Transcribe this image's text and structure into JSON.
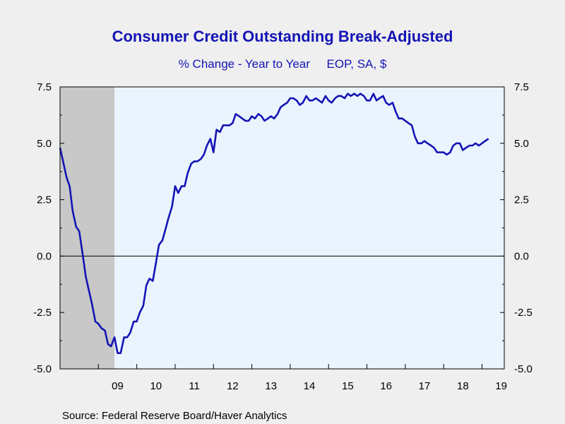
{
  "chart_data": {
    "type": "line",
    "title": "Consumer Credit Outstanding Break-Adjusted",
    "subtitle": "% Change - Year to Year     EOP, SA, $",
    "source": "Source:  Federal Reserve Board/Haver Analytics",
    "ylim": [
      -5.0,
      7.5
    ],
    "yticks": [
      "7.5",
      "5.0",
      "2.5",
      "0.0",
      "-2.5",
      "-5.0"
    ],
    "xlim": [
      2008.0,
      2019.58
    ],
    "xticks": [
      "09",
      "10",
      "11",
      "12",
      "13",
      "14",
      "15",
      "16",
      "17",
      "18",
      "19"
    ],
    "recession": [
      2008.0,
      2009.42
    ],
    "grid": false,
    "colors": {
      "series": "#1414b4",
      "plot_bg": "#eaf4ff",
      "recession": "#c8c8c8",
      "title": "#1414b4"
    },
    "series": [
      {
        "values": [
          [
            2008.0,
            4.8
          ],
          [
            2008.08,
            4.2
          ],
          [
            2008.17,
            3.5
          ],
          [
            2008.25,
            3.1
          ],
          [
            2008.33,
            2.0
          ],
          [
            2008.42,
            1.3
          ],
          [
            2008.5,
            1.1
          ],
          [
            2008.58,
            0.2
          ],
          [
            2008.67,
            -0.9
          ],
          [
            2008.75,
            -1.5
          ],
          [
            2008.83,
            -2.1
          ],
          [
            2008.92,
            -2.9
          ],
          [
            2009.0,
            -3.0
          ],
          [
            2009.08,
            -3.2
          ],
          [
            2009.17,
            -3.3
          ],
          [
            2009.25,
            -3.9
          ],
          [
            2009.33,
            -4.0
          ],
          [
            2009.42,
            -3.6
          ],
          [
            2009.5,
            -4.3
          ],
          [
            2009.58,
            -4.3
          ],
          [
            2009.67,
            -3.6
          ],
          [
            2009.75,
            -3.6
          ],
          [
            2009.83,
            -3.4
          ],
          [
            2009.92,
            -2.9
          ],
          [
            2010.0,
            -2.9
          ],
          [
            2010.08,
            -2.5
          ],
          [
            2010.17,
            -2.2
          ],
          [
            2010.25,
            -1.3
          ],
          [
            2010.33,
            -1.0
          ],
          [
            2010.42,
            -1.1
          ],
          [
            2010.5,
            -0.3
          ],
          [
            2010.58,
            0.5
          ],
          [
            2010.67,
            0.7
          ],
          [
            2010.75,
            1.2
          ],
          [
            2010.83,
            1.7
          ],
          [
            2010.92,
            2.2
          ],
          [
            2011.0,
            3.1
          ],
          [
            2011.08,
            2.8
          ],
          [
            2011.17,
            3.1
          ],
          [
            2011.25,
            3.1
          ],
          [
            2011.33,
            3.7
          ],
          [
            2011.42,
            4.1
          ],
          [
            2011.5,
            4.2
          ],
          [
            2011.58,
            4.2
          ],
          [
            2011.67,
            4.3
          ],
          [
            2011.75,
            4.5
          ],
          [
            2011.83,
            4.9
          ],
          [
            2011.92,
            5.2
          ],
          [
            2012.0,
            4.6
          ],
          [
            2012.08,
            5.6
          ],
          [
            2012.17,
            5.5
          ],
          [
            2012.25,
            5.8
          ],
          [
            2012.33,
            5.8
          ],
          [
            2012.42,
            5.8
          ],
          [
            2012.5,
            5.9
          ],
          [
            2012.58,
            6.3
          ],
          [
            2012.67,
            6.2
          ],
          [
            2012.75,
            6.1
          ],
          [
            2012.83,
            6.0
          ],
          [
            2012.92,
            6.0
          ],
          [
            2013.0,
            6.2
          ],
          [
            2013.08,
            6.1
          ],
          [
            2013.17,
            6.3
          ],
          [
            2013.25,
            6.2
          ],
          [
            2013.33,
            6.0
          ],
          [
            2013.42,
            6.1
          ],
          [
            2013.5,
            6.2
          ],
          [
            2013.58,
            6.1
          ],
          [
            2013.67,
            6.3
          ],
          [
            2013.75,
            6.6
          ],
          [
            2013.83,
            6.7
          ],
          [
            2013.92,
            6.8
          ],
          [
            2014.0,
            7.0
          ],
          [
            2014.08,
            7.0
          ],
          [
            2014.17,
            6.9
          ],
          [
            2014.25,
            6.7
          ],
          [
            2014.33,
            6.8
          ],
          [
            2014.42,
            7.1
          ],
          [
            2014.5,
            6.9
          ],
          [
            2014.58,
            6.9
          ],
          [
            2014.67,
            7.0
          ],
          [
            2014.75,
            6.9
          ],
          [
            2014.83,
            6.8
          ],
          [
            2014.92,
            7.1
          ],
          [
            2015.0,
            6.9
          ],
          [
            2015.08,
            6.8
          ],
          [
            2015.17,
            7.0
          ],
          [
            2015.25,
            7.1
          ],
          [
            2015.33,
            7.1
          ],
          [
            2015.42,
            7.0
          ],
          [
            2015.5,
            7.2
          ],
          [
            2015.58,
            7.1
          ],
          [
            2015.67,
            7.2
          ],
          [
            2015.75,
            7.1
          ],
          [
            2015.83,
            7.2
          ],
          [
            2015.92,
            7.1
          ],
          [
            2016.0,
            6.9
          ],
          [
            2016.08,
            6.9
          ],
          [
            2016.17,
            7.2
          ],
          [
            2016.25,
            6.9
          ],
          [
            2016.33,
            7.0
          ],
          [
            2016.42,
            7.1
          ],
          [
            2016.5,
            6.8
          ],
          [
            2016.58,
            6.7
          ],
          [
            2016.67,
            6.8
          ],
          [
            2016.75,
            6.4
          ],
          [
            2016.83,
            6.1
          ],
          [
            2016.92,
            6.1
          ],
          [
            2017.0,
            6.0
          ],
          [
            2017.08,
            5.9
          ],
          [
            2017.17,
            5.8
          ],
          [
            2017.25,
            5.3
          ],
          [
            2017.33,
            5.0
          ],
          [
            2017.42,
            5.0
          ],
          [
            2017.5,
            5.1
          ],
          [
            2017.58,
            5.0
          ],
          [
            2017.67,
            4.9
          ],
          [
            2017.75,
            4.8
          ],
          [
            2017.83,
            4.6
          ],
          [
            2017.92,
            4.6
          ],
          [
            2018.0,
            4.6
          ],
          [
            2018.08,
            4.5
          ],
          [
            2018.17,
            4.6
          ],
          [
            2018.25,
            4.9
          ],
          [
            2018.33,
            5.0
          ],
          [
            2018.42,
            5.0
          ],
          [
            2018.5,
            4.7
          ],
          [
            2018.58,
            4.8
          ],
          [
            2018.67,
            4.9
          ],
          [
            2018.75,
            4.9
          ],
          [
            2018.83,
            5.0
          ],
          [
            2018.92,
            4.9
          ],
          [
            2019.0,
            5.0
          ],
          [
            2019.08,
            5.1
          ],
          [
            2019.17,
            5.2
          ]
        ]
      }
    ]
  }
}
